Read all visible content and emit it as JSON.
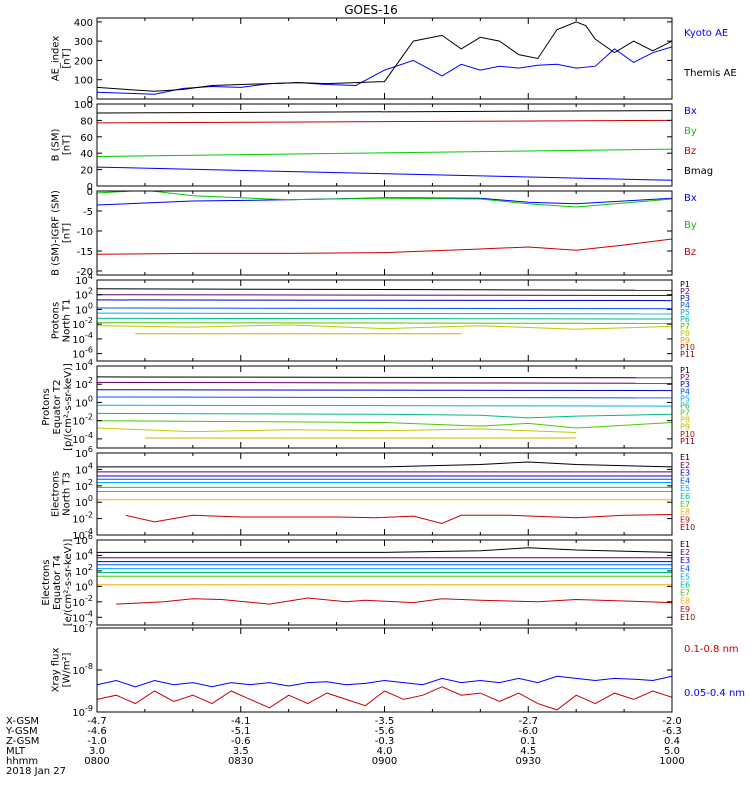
{
  "title": "GOES-16",
  "footer": {
    "rows": [
      {
        "label": "X-GSM",
        "values": [
          "-4.7",
          "-4.1",
          "-3.5",
          "-2.7",
          "-2.0"
        ]
      },
      {
        "label": "Y-GSM",
        "values": [
          "-4.6",
          "-5.1",
          "-5.6",
          "-6.0",
          "-6.3"
        ]
      },
      {
        "label": "Z-GSM",
        "values": [
          "-1.0",
          "-0.6",
          "-0.3",
          "0.1",
          "0.4"
        ]
      },
      {
        "label": "MLT",
        "values": [
          "3.0",
          "3.5",
          "4.0",
          "4.5",
          "5.0"
        ]
      },
      {
        "label": "hhmm",
        "values": [
          "0800",
          "0830",
          "0900",
          "0930",
          "1000"
        ]
      }
    ],
    "date": "2018 Jan 27"
  },
  "chart_data": [
    {
      "id": "ae",
      "type": "line",
      "ylabel": [
        "AE_index",
        "[nT]"
      ],
      "ylim": [
        0,
        420
      ],
      "yticks": [
        "0",
        "100",
        "200",
        "300",
        "400"
      ],
      "ytick_values": [
        0,
        100,
        200,
        300,
        400
      ],
      "x_minutes": [
        0,
        120
      ],
      "series": [
        {
          "name": "Kyoto AE",
          "color": "#0000ff",
          "x": [
            0,
            6,
            12,
            18,
            24,
            30,
            36,
            42,
            48,
            54,
            60,
            66,
            72,
            76,
            80,
            84,
            88,
            92,
            96,
            100,
            104,
            108,
            112,
            116,
            120
          ],
          "y": [
            35,
            30,
            25,
            55,
            65,
            60,
            80,
            85,
            75,
            70,
            150,
            200,
            120,
            180,
            150,
            170,
            160,
            175,
            180,
            160,
            170,
            260,
            190,
            240,
            270
          ]
        },
        {
          "name": "Themis AE",
          "color": "#000000",
          "x": [
            0,
            6,
            12,
            18,
            24,
            30,
            36,
            42,
            48,
            54,
            60,
            66,
            72,
            76,
            80,
            84,
            88,
            92,
            96,
            100,
            102,
            104,
            108,
            112,
            116,
            120
          ],
          "y": [
            60,
            50,
            40,
            50,
            70,
            75,
            80,
            85,
            80,
            85,
            90,
            300,
            330,
            260,
            320,
            300,
            230,
            210,
            360,
            400,
            380,
            310,
            240,
            300,
            250,
            300
          ]
        }
      ]
    },
    {
      "id": "bsm",
      "type": "line",
      "ylabel": [
        "B (SM)",
        "[nT]"
      ],
      "ylim": [
        0,
        100
      ],
      "yticks": [
        "0",
        "20",
        "40",
        "60",
        "80",
        "100"
      ],
      "ytick_values": [
        0,
        20,
        40,
        60,
        80,
        100
      ],
      "series": [
        {
          "name": "Bx",
          "color": "#0000ff",
          "x": [
            0,
            120
          ],
          "y": [
            23,
            7
          ]
        },
        {
          "name": "By",
          "color": "#00cc00",
          "x": [
            0,
            120
          ],
          "y": [
            36,
            45
          ]
        },
        {
          "name": "Bz",
          "color": "#cc0000",
          "x": [
            0,
            120
          ],
          "y": [
            77,
            80
          ]
        },
        {
          "name": "Bmag",
          "color": "#000000",
          "x": [
            0,
            120
          ],
          "y": [
            89,
            92
          ]
        }
      ]
    },
    {
      "id": "bdiff",
      "type": "line",
      "ylabel": [
        "B (SM)-IGRF (SM)",
        "[nT]"
      ],
      "ylim": [
        -21,
        0
      ],
      "yticks": [
        "-20",
        "-15",
        "-10",
        "-5",
        "0"
      ],
      "ytick_values": [
        -20,
        -15,
        -10,
        -5,
        0
      ],
      "series": [
        {
          "name": "Bx",
          "color": "#0000ff",
          "x": [
            0,
            20,
            40,
            60,
            80,
            90,
            100,
            110,
            120
          ],
          "y": [
            -3.5,
            -2.5,
            -2.2,
            -1.7,
            -1.8,
            -2.8,
            -3.2,
            -2.5,
            -1.8
          ]
        },
        {
          "name": "By",
          "color": "#00cc00",
          "x": [
            0,
            10,
            20,
            40,
            60,
            80,
            90,
            100,
            110,
            120
          ],
          "y": [
            -0.5,
            0.2,
            -1.2,
            -2.2,
            -1.8,
            -2.0,
            -3.2,
            -4.0,
            -3.0,
            -2.0
          ]
        },
        {
          "name": "Bz",
          "color": "#cc0000",
          "x": [
            0,
            20,
            40,
            60,
            80,
            90,
            100,
            110,
            120
          ],
          "y": [
            -15.8,
            -15.6,
            -15.6,
            -15.4,
            -14.5,
            -14.0,
            -14.8,
            -13.5,
            -12.0
          ]
        }
      ]
    },
    {
      "id": "pn",
      "type": "line",
      "ylabel": [
        "Protons",
        "North T1"
      ],
      "log": true,
      "ylim": [
        -7,
        4
      ],
      "ytick_exps": [
        4,
        2,
        0,
        -2,
        -4,
        -6
      ],
      "series": [
        {
          "name": "P1",
          "color": "#000000",
          "x": [
            0,
            120
          ],
          "y": [
            2.8,
            2.6
          ]
        },
        {
          "name": "P2",
          "color": "#660066",
          "x": [
            0,
            120
          ],
          "y": [
            2.0,
            1.9
          ]
        },
        {
          "name": "P3",
          "color": "#0000cc",
          "x": [
            0,
            120
          ],
          "y": [
            1.3,
            1.2
          ]
        },
        {
          "name": "P4",
          "color": "#0055ff",
          "x": [
            0,
            120
          ],
          "y": [
            0.2,
            0.1
          ]
        },
        {
          "name": "P5",
          "color": "#00aaff",
          "x": [
            0,
            120
          ],
          "y": [
            -0.5,
            -0.6
          ]
        },
        {
          "name": "P6",
          "color": "#00bb88",
          "x": [
            0,
            120
          ],
          "y": [
            -1.2,
            -1.3
          ]
        },
        {
          "name": "P7",
          "color": "#44cc00",
          "x": [
            0,
            120
          ],
          "y": [
            -1.8,
            -1.9
          ]
        },
        {
          "name": "P8",
          "color": "#bbcc00",
          "x": [
            0,
            20,
            40,
            60,
            80,
            100,
            120
          ],
          "y": [
            -2.2,
            -2.4,
            -2.1,
            -2.6,
            -2.2,
            -2.7,
            -2.3
          ]
        },
        {
          "name": "P9",
          "color": "#ddaa00",
          "x": [
            8,
            20,
            70,
            76
          ],
          "y": [
            -3.3,
            -3.3,
            -3.3,
            -3.3
          ]
        },
        {
          "name": "P10",
          "color": "#cc0000",
          "x": [],
          "y": []
        },
        {
          "name": "P11",
          "color": "#880000",
          "x": [],
          "y": []
        }
      ]
    },
    {
      "id": "pe",
      "type": "line",
      "ylabel": [
        "Protons",
        "Equator T2",
        "[p/(cm²-s-sr-keV)]"
      ],
      "log": true,
      "ylim": [
        -5,
        4
      ],
      "ytick_exps": [
        4,
        2,
        0,
        -2,
        -4
      ],
      "series": [
        {
          "name": "P1",
          "color": "#000000",
          "x": [
            0,
            120
          ],
          "y": [
            2.8,
            2.7
          ]
        },
        {
          "name": "P2",
          "color": "#660066",
          "x": [
            0,
            120
          ],
          "y": [
            2.2,
            2.1
          ]
        },
        {
          "name": "P3",
          "color": "#0000cc",
          "x": [
            0,
            120
          ],
          "y": [
            1.4,
            1.3
          ]
        },
        {
          "name": "P4",
          "color": "#0055ff",
          "x": [
            0,
            120
          ],
          "y": [
            0.6,
            0.5
          ]
        },
        {
          "name": "P5",
          "color": "#00aaff",
          "x": [
            0,
            120
          ],
          "y": [
            -0.3,
            -0.4
          ]
        },
        {
          "name": "P6",
          "color": "#00bb88",
          "x": [
            0,
            60,
            80,
            90,
            100,
            120
          ],
          "y": [
            -1.2,
            -1.3,
            -1.4,
            -1.7,
            -1.5,
            -1.3
          ]
        },
        {
          "name": "P7",
          "color": "#44cc00",
          "x": [
            0,
            30,
            60,
            80,
            90,
            100,
            120
          ],
          "y": [
            -2.0,
            -2.1,
            -2.2,
            -2.6,
            -2.3,
            -2.8,
            -2.2
          ]
        },
        {
          "name": "P8",
          "color": "#bbcc00",
          "x": [
            0,
            20,
            40,
            60,
            80,
            100
          ],
          "y": [
            -2.8,
            -3.2,
            -3.0,
            -3.1,
            -2.9,
            -3.3
          ]
        },
        {
          "name": "P9",
          "color": "#ddaa00",
          "x": [
            10,
            40,
            70,
            100
          ],
          "y": [
            -3.9,
            -3.9,
            -3.9,
            -3.9
          ]
        },
        {
          "name": "P10",
          "color": "#cc0000",
          "x": [],
          "y": []
        },
        {
          "name": "P11",
          "color": "#880000",
          "x": [],
          "y": []
        }
      ]
    },
    {
      "id": "en",
      "type": "line",
      "ylabel": [
        "Electrons",
        "North T3"
      ],
      "log": true,
      "ylim": [
        -4,
        6
      ],
      "ytick_exps": [
        6,
        4,
        2,
        0,
        -2,
        -4
      ],
      "series": [
        {
          "name": "E1",
          "color": "#000000",
          "x": [
            0,
            60,
            80,
            90,
            100,
            120
          ],
          "y": [
            4.3,
            4.3,
            4.6,
            4.9,
            4.6,
            4.3
          ]
        },
        {
          "name": "E2",
          "color": "#660066",
          "x": [
            0,
            120
          ],
          "y": [
            3.7,
            3.7
          ]
        },
        {
          "name": "E3",
          "color": "#0000cc",
          "x": [
            0,
            120
          ],
          "y": [
            3.2,
            3.2
          ]
        },
        {
          "name": "E4",
          "color": "#0055ff",
          "x": [
            0,
            120
          ],
          "y": [
            2.8,
            2.8
          ]
        },
        {
          "name": "E5",
          "color": "#00aaff",
          "x": [
            0,
            120
          ],
          "y": [
            2.4,
            2.4
          ]
        },
        {
          "name": "E6",
          "color": "#00bb88",
          "x": [
            0,
            120
          ],
          "y": [
            1.8,
            1.8
          ]
        },
        {
          "name": "E7",
          "color": "#44cc00",
          "x": [
            0,
            120
          ],
          "y": [
            1.3,
            1.3
          ]
        },
        {
          "name": "E8",
          "color": "#ffaa00",
          "x": [
            0,
            120
          ],
          "y": [
            0.3,
            0.3
          ]
        },
        {
          "name": "E9",
          "color": "#cc0000",
          "x": [
            6,
            12,
            20,
            30,
            50,
            58,
            66,
            72,
            76,
            86,
            100,
            110,
            120
          ],
          "y": [
            -1.6,
            -2.4,
            -1.6,
            -1.8,
            -1.8,
            -1.9,
            -1.7,
            -2.6,
            -1.6,
            -1.6,
            -1.9,
            -1.6,
            -1.5
          ]
        },
        {
          "name": "E10",
          "color": "#880000",
          "x": [],
          "y": []
        }
      ]
    },
    {
      "id": "ee",
      "type": "line",
      "ylabel": [
        "Electrons",
        "Equator T4",
        "[e/(cm²-s-sr-keV)]"
      ],
      "log": true,
      "ylim": [
        -5,
        6
      ],
      "ytick_exps": [
        6,
        4,
        2,
        0,
        -2,
        -4
      ],
      "series": [
        {
          "name": "E1",
          "color": "#000000",
          "x": [
            0,
            60,
            80,
            90,
            100,
            120
          ],
          "y": [
            4.4,
            4.4,
            4.6,
            5.0,
            4.7,
            4.4
          ]
        },
        {
          "name": "E2",
          "color": "#660066",
          "x": [
            0,
            120
          ],
          "y": [
            3.7,
            3.7
          ]
        },
        {
          "name": "E3",
          "color": "#0000cc",
          "x": [
            0,
            120
          ],
          "y": [
            3.2,
            3.2
          ]
        },
        {
          "name": "E4",
          "color": "#0055ff",
          "x": [
            0,
            120
          ],
          "y": [
            2.8,
            2.8
          ]
        },
        {
          "name": "E5",
          "color": "#00aaff",
          "x": [
            0,
            120
          ],
          "y": [
            2.3,
            2.3
          ]
        },
        {
          "name": "E6",
          "color": "#00bb88",
          "x": [
            0,
            120
          ],
          "y": [
            1.8,
            1.8
          ]
        },
        {
          "name": "E7",
          "color": "#44cc00",
          "x": [
            0,
            120
          ],
          "y": [
            1.3,
            1.3
          ]
        },
        {
          "name": "E8",
          "color": "#ffaa00",
          "x": [
            0,
            120
          ],
          "y": [
            0.2,
            0.2
          ]
        },
        {
          "name": "E9",
          "color": "#cc0000",
          "x": [
            4,
            14,
            20,
            26,
            36,
            44,
            52,
            56,
            66,
            72,
            80,
            92,
            100,
            110,
            120
          ],
          "y": [
            -2.3,
            -2.0,
            -1.6,
            -1.7,
            -2.3,
            -1.5,
            -2.0,
            -1.8,
            -2.1,
            -1.6,
            -1.8,
            -2.0,
            -1.7,
            -1.9,
            -2.1
          ]
        },
        {
          "name": "E10",
          "color": "#880000",
          "x": [],
          "y": []
        }
      ]
    },
    {
      "id": "xray",
      "type": "line",
      "ylabel": [
        "Xray flux",
        "[W/m²]"
      ],
      "log": true,
      "ylim": [
        -9,
        -7
      ],
      "ytick_exps": [
        -7,
        -8,
        -9
      ],
      "series": [
        {
          "name": "0.1-0.8 nm",
          "color": "#cc0000",
          "x": [
            0,
            4,
            8,
            12,
            16,
            20,
            24,
            28,
            32,
            36,
            40,
            44,
            48,
            52,
            56,
            60,
            64,
            68,
            72,
            76,
            80,
            84,
            88,
            92,
            96,
            100,
            104,
            108,
            112,
            116,
            120
          ],
          "y": [
            -8.7,
            -8.6,
            -8.8,
            -8.5,
            -8.75,
            -8.6,
            -8.8,
            -8.5,
            -8.7,
            -8.9,
            -8.6,
            -8.8,
            -8.55,
            -8.7,
            -8.85,
            -8.5,
            -8.7,
            -8.6,
            -8.4,
            -8.6,
            -8.55,
            -8.75,
            -8.55,
            -8.8,
            -8.95,
            -8.6,
            -8.8,
            -8.55,
            -8.7,
            -8.5,
            -8.65
          ]
        },
        {
          "name": "0.05-0.4 nm",
          "color": "#0000ff",
          "x": [
            0,
            4,
            8,
            12,
            16,
            20,
            24,
            28,
            32,
            36,
            40,
            44,
            48,
            52,
            56,
            60,
            64,
            68,
            72,
            76,
            80,
            84,
            88,
            92,
            96,
            100,
            104,
            108,
            112,
            116,
            120
          ],
          "y": [
            -8.35,
            -8.25,
            -8.4,
            -8.25,
            -8.35,
            -8.3,
            -8.4,
            -8.3,
            -8.35,
            -8.3,
            -8.38,
            -8.3,
            -8.28,
            -8.35,
            -8.32,
            -8.25,
            -8.3,
            -8.35,
            -8.2,
            -8.3,
            -8.25,
            -8.3,
            -8.2,
            -8.3,
            -8.15,
            -8.2,
            -8.25,
            -8.2,
            -8.22,
            -8.25,
            -8.15
          ]
        }
      ]
    }
  ]
}
